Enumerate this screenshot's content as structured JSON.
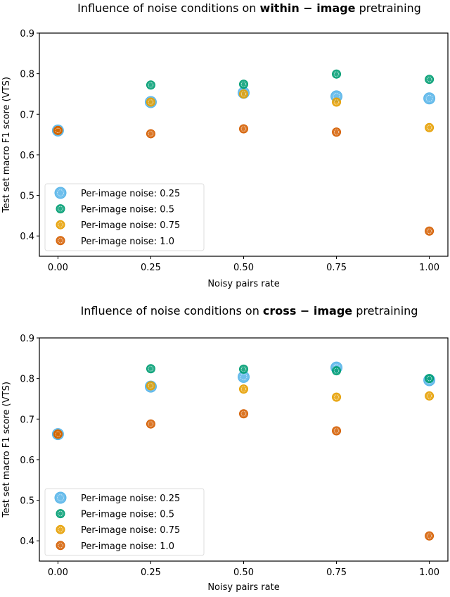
{
  "chart_data": [
    {
      "type": "scatter",
      "title": {
        "prefix": "Influence of noise conditions on ",
        "bold": "within − image",
        "suffix": " pretraining"
      },
      "xlabel": "Noisy pairs rate",
      "ylabel": "Test set macro F1 score (VTS)",
      "x": [
        0.0,
        0.25,
        0.5,
        0.75,
        1.0
      ],
      "xticks": [
        "0.00",
        "0.25",
        "0.50",
        "0.75",
        "1.00"
      ],
      "yticks": [
        "0.4",
        "0.5",
        "0.6",
        "0.7",
        "0.8",
        "0.9"
      ],
      "xlim": [
        -0.05,
        1.05
      ],
      "ylim": [
        0.35,
        0.9
      ],
      "grid": false,
      "legend_position": "lower-left",
      "series": [
        {
          "name": "Per-image noise: 0.25",
          "color": "#56B4E9",
          "values": [
            0.66,
            0.73,
            0.753,
            0.744,
            0.739
          ]
        },
        {
          "name": "Per-image noise: 0.5",
          "color": "#009E73",
          "values": [
            0.66,
            0.772,
            0.774,
            0.799,
            0.786
          ]
        },
        {
          "name": "Per-image noise: 0.75",
          "color": "#E69F00",
          "values": [
            0.66,
            0.73,
            0.75,
            0.73,
            0.667
          ]
        },
        {
          "name": "Per-image noise: 1.0",
          "color": "#D55E00",
          "values": [
            0.66,
            0.652,
            0.664,
            0.656,
            0.412
          ]
        }
      ]
    },
    {
      "type": "scatter",
      "title": {
        "prefix": "Influence of noise conditions on ",
        "bold": "cross − image",
        "suffix": " pretraining"
      },
      "xlabel": "Noisy pairs rate",
      "ylabel": "Test set macro F1 score (VTS)",
      "x": [
        0.0,
        0.25,
        0.5,
        0.75,
        1.0
      ],
      "xticks": [
        "0.00",
        "0.25",
        "0.50",
        "0.75",
        "1.00"
      ],
      "yticks": [
        "0.4",
        "0.5",
        "0.6",
        "0.7",
        "0.8",
        "0.9"
      ],
      "xlim": [
        -0.05,
        1.05
      ],
      "ylim": [
        0.35,
        0.9
      ],
      "grid": false,
      "legend_position": "lower-left",
      "series": [
        {
          "name": "Per-image noise: 0.25",
          "color": "#56B4E9",
          "values": [
            0.663,
            0.78,
            0.804,
            0.827,
            0.796
          ]
        },
        {
          "name": "Per-image noise: 0.5",
          "color": "#009E73",
          "values": [
            0.663,
            0.824,
            0.823,
            0.819,
            0.8
          ]
        },
        {
          "name": "Per-image noise: 0.75",
          "color": "#E69F00",
          "values": [
            0.663,
            0.782,
            0.774,
            0.754,
            0.757
          ]
        },
        {
          "name": "Per-image noise: 1.0",
          "color": "#D55E00",
          "values": [
            0.663,
            0.688,
            0.713,
            0.671,
            0.412
          ]
        }
      ]
    }
  ]
}
